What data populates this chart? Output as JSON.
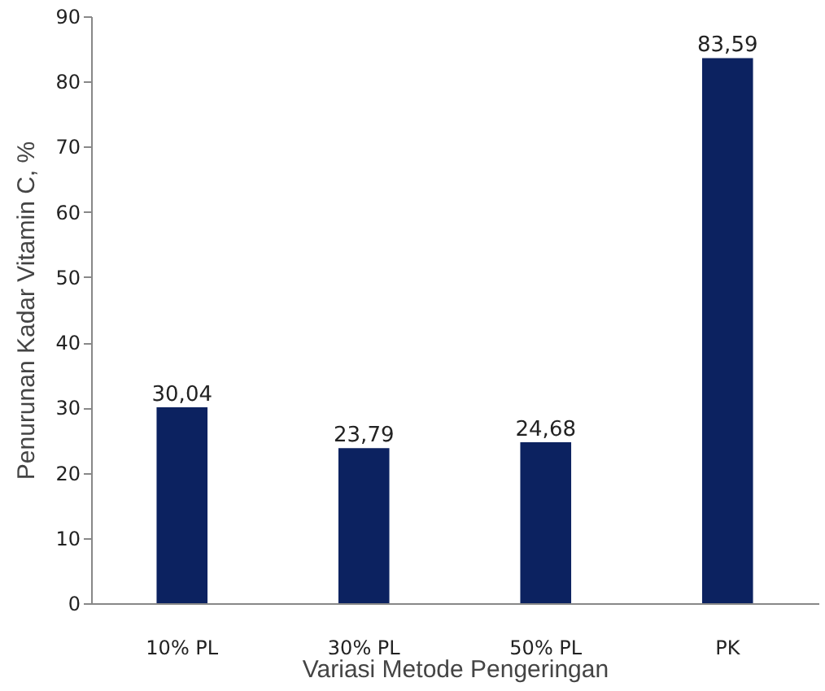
{
  "chart_data": {
    "type": "bar",
    "xlabel": "Variasi Metode Pengeringan",
    "ylabel": "Penurunan Kadar Vitamin C, %",
    "categories": [
      "10% PL",
      "30% PL",
      "50% PL",
      "PK"
    ],
    "values": [
      30.04,
      23.79,
      24.68,
      83.59
    ],
    "value_labels": [
      "30,04",
      "23,79",
      "24,68",
      "83,59"
    ],
    "color": "#0c2260",
    "ylim": [
      0,
      90
    ],
    "yticks": [
      0,
      10,
      20,
      30,
      40,
      50,
      60,
      70,
      80,
      90
    ],
    "grid": false
  }
}
